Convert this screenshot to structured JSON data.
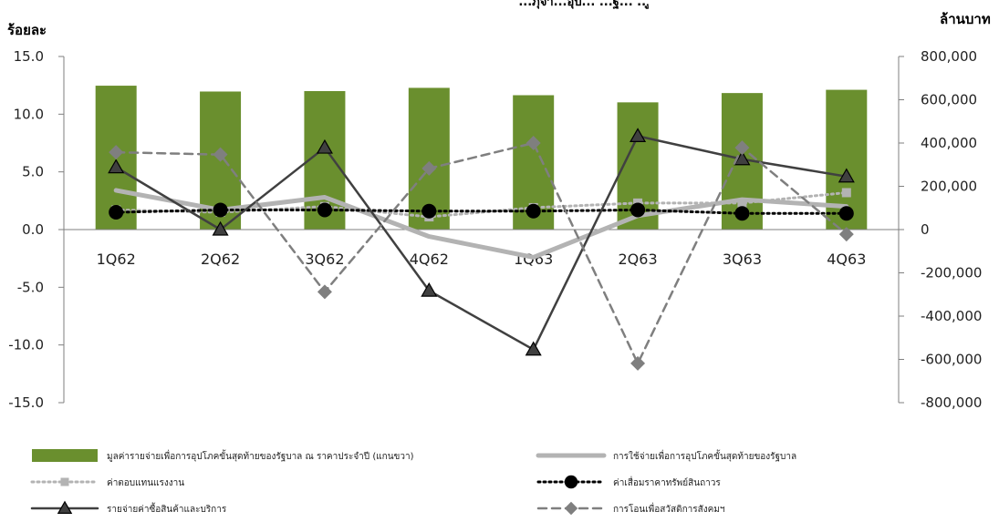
{
  "chart_data": {
    "type": "bar",
    "title": "...ภุจา...อุป... ...ฐ... ...ู",
    "left_axis_title": "ร้อยละ",
    "right_axis_title": "ล้านบาท",
    "categories": [
      "1Q62",
      "2Q62",
      "3Q62",
      "4Q62",
      "1Q63",
      "2Q63",
      "3Q63",
      "4Q63"
    ],
    "ylim_left": [
      -15,
      15
    ],
    "left_ticks": [
      "15.0",
      "10.0",
      "5.0",
      "0.0",
      "-5.0",
      "-10.0",
      "-15.0"
    ],
    "ylim_right": [
      -800000,
      800000
    ],
    "right_ticks": [
      "800,000",
      "600,000",
      "400,000",
      "200,000",
      "0",
      "-200,000",
      "-400,000",
      "-600,000",
      "-800,000"
    ],
    "bar_series": {
      "name": "มูลค่ารายจ่ายเพื่อการอุปโภคขั้นสุดท้ายของรัฐบาล ณ ราคาประจำปี (แกนขวา)",
      "axis": "right",
      "color": "#6a8f2e",
      "values": [
        665000,
        638000,
        640000,
        655000,
        621000,
        588000,
        631000,
        646000
      ]
    },
    "line_series": [
      {
        "name": "การใช้จ่ายเพื่อการอุปโภคขั้นสุดท้ายของรัฐบาล",
        "color": "#b3b3b3",
        "style": "solid-thick",
        "marker": "none",
        "values": [
          3.4,
          1.7,
          2.8,
          -0.6,
          -2.4,
          1.2,
          2.6,
          2.0
        ]
      },
      {
        "name": "ค่าตอบแทนแรงงาน",
        "color": "#b3b3b3",
        "style": "dotted",
        "marker": "square",
        "values": [
          1.7,
          1.5,
          2.0,
          1.1,
          1.9,
          2.3,
          2.3,
          3.2
        ]
      },
      {
        "name": "ค่าเสื่อมราคาทรัพย์สินถาวร",
        "color": "#000000",
        "style": "dotted",
        "marker": "circle",
        "values": [
          1.5,
          1.7,
          1.7,
          1.6,
          1.6,
          1.7,
          1.4,
          1.4
        ]
      },
      {
        "name": "รายจ่ายค่าซื้อสินค้าและบริการ",
        "color": "#404040",
        "style": "solid",
        "marker": "triangle",
        "values": [
          5.4,
          0.0,
          7.1,
          -5.3,
          -10.4,
          8.1,
          6.1,
          4.6
        ]
      },
      {
        "name": "การโอนเพื่อสวัสดิการสังคมฯ",
        "color": "#7f7f7f",
        "style": "dashed",
        "marker": "diamond",
        "values": [
          6.7,
          6.5,
          -5.4,
          5.3,
          7.5,
          -11.6,
          7.1,
          -0.4
        ]
      }
    ],
    "grid": false,
    "legend_position": "bottom"
  },
  "colors": {
    "bar": "#6a8f2e",
    "axis": "#7f7f7f"
  }
}
